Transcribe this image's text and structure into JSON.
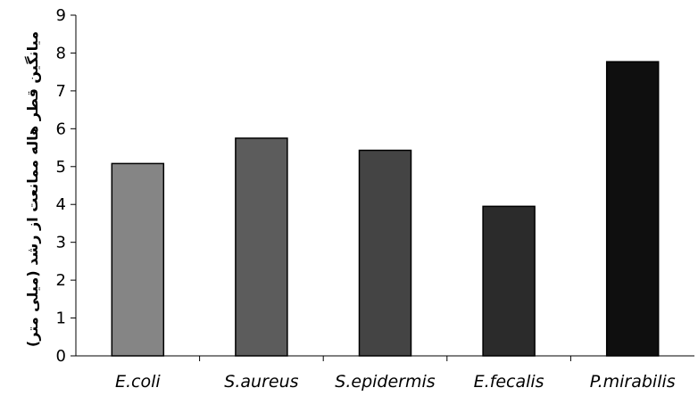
{
  "chart_data": {
    "type": "bar",
    "title": "",
    "xlabel": "",
    "ylabel": "میانگین قطر هاله ممانعت از رشد (میلی متر)",
    "categories": [
      "E.coli",
      "S.aureus",
      "S.epidermis",
      "E.fecalis",
      "P.mirabilis"
    ],
    "values": [
      5.08,
      5.75,
      5.43,
      3.95,
      7.77
    ],
    "colors": [
      "#858585",
      "#5c5c5c",
      "#444444",
      "#2b2b2b",
      "#0f0f0f"
    ],
    "ylim": [
      0,
      9
    ],
    "yticks": [
      "0",
      "1",
      "2",
      "3",
      "4",
      "5",
      "6",
      "7",
      "8",
      "9"
    ],
    "grid": false,
    "legend": "none"
  }
}
